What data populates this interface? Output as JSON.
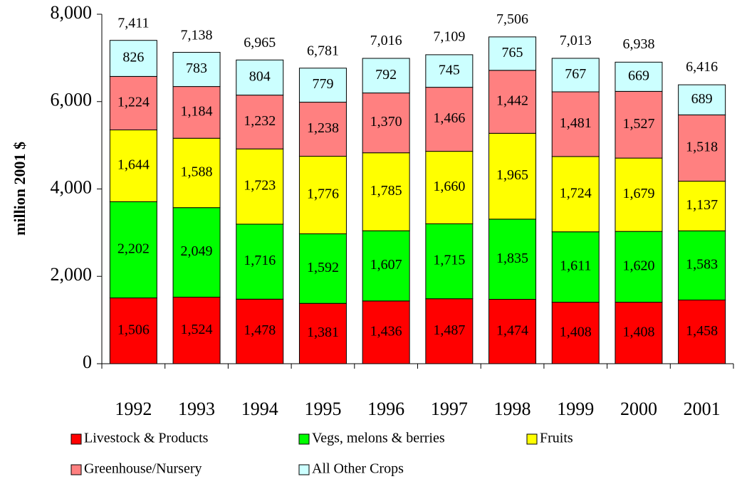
{
  "chart_data": {
    "type": "stacked_bar",
    "y_label": "million 2001 $",
    "categories": [
      "1992",
      "1993",
      "1994",
      "1995",
      "1996",
      "1997",
      "1998",
      "1999",
      "2000",
      "2001"
    ],
    "series": [
      {
        "name": "Livestock & Products",
        "color": "#ff0000",
        "values": [
          1506,
          1524,
          1478,
          1381,
          1436,
          1487,
          1474,
          1408,
          1408,
          1458
        ],
        "value_labels": [
          "1,506",
          "1,524",
          "1,478",
          "1,381",
          "1,436",
          "1,487",
          "1,474",
          "1,408",
          "1,408",
          "1,458"
        ]
      },
      {
        "name": "Vegs, melons & berries",
        "color": "#00ff00",
        "values": [
          2202,
          2049,
          1716,
          1592,
          1607,
          1715,
          1835,
          1611,
          1620,
          1583
        ],
        "value_labels": [
          "2,202",
          "2,049",
          "1,716",
          "1,592",
          "1,607",
          "1,715",
          "1,835",
          "1,611",
          "1,620",
          "1,583"
        ]
      },
      {
        "name": "Fruits",
        "color": "#ffff00",
        "values": [
          1644,
          1588,
          1723,
          1776,
          1785,
          1660,
          1965,
          1724,
          1679,
          1137
        ],
        "value_labels": [
          "1,644",
          "1,588",
          "1,723",
          "1,776",
          "1,785",
          "1,660",
          "1,965",
          "1,724",
          "1,679",
          "1,137"
        ]
      },
      {
        "name": "Greenhouse/Nursery",
        "color": "#ff8080",
        "values": [
          1224,
          1184,
          1232,
          1238,
          1370,
          1466,
          1442,
          1481,
          1527,
          1518
        ],
        "value_labels": [
          "1,224",
          "1,184",
          "1,232",
          "1,238",
          "1,370",
          "1,466",
          "1,442",
          "1,481",
          "1,527",
          "1,518"
        ]
      },
      {
        "name": "All Other Crops",
        "color": "#ccffff",
        "values": [
          826,
          783,
          804,
          779,
          792,
          745,
          765,
          767,
          669,
          689
        ]
      }
    ],
    "totals": [
      7411,
      7138,
      6965,
      6781,
      7016,
      7109,
      7506,
      7013,
      6938,
      6416
    ],
    "total_labels": [
      "7,411",
      "7,138",
      "6,965",
      "6,781",
      "7,016",
      "7,109",
      "7,506",
      "7,013",
      "6,938",
      "6,416"
    ],
    "ylim": [
      0,
      8000
    ],
    "yticks": [
      0,
      {
        "value": 2000,
        "label": "2,000"
      },
      {
        "value": 4000,
        "label": "4,000"
      },
      {
        "value": 6000,
        "label": "6,000"
      },
      {
        "value": 8000,
        "label": "8,000"
      }
    ]
  }
}
